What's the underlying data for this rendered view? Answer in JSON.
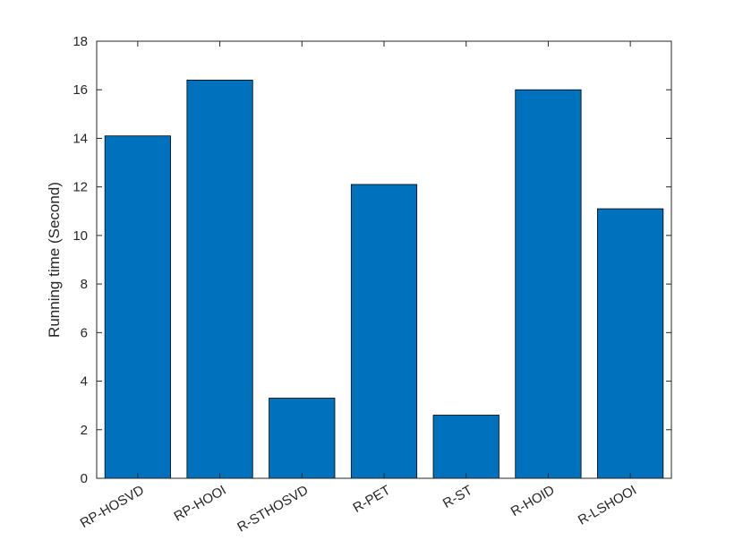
{
  "chart_data": {
    "type": "bar",
    "title": "",
    "xlabel": "",
    "ylabel": "Running time (Second)",
    "categories": [
      "RP-HOSVD",
      "RP-HOOI",
      "R-STHOSVD",
      "R-PET",
      "R-ST",
      "R-HOID",
      "R-LSHOOI"
    ],
    "values": [
      14.1,
      16.4,
      3.3,
      12.1,
      2.6,
      16.0,
      11.1
    ],
    "ylim": [
      0,
      18
    ],
    "yticks": [
      0,
      2,
      4,
      6,
      8,
      10,
      12,
      14,
      16,
      18
    ],
    "grid": false,
    "legend": "none",
    "bar_color": "#0072BD"
  }
}
